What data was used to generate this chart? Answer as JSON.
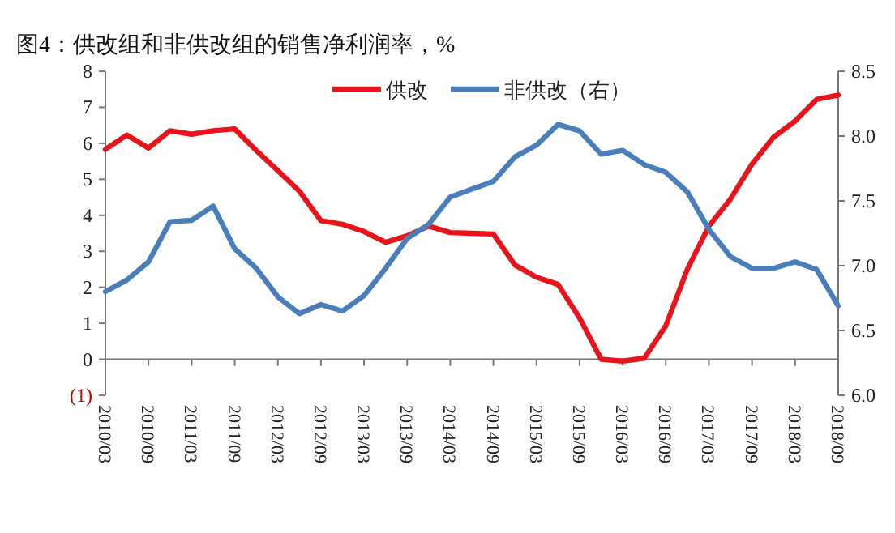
{
  "chart_data": {
    "type": "line",
    "title": "图4：供改组和非供改组的销售净利润率，%",
    "categories": [
      "2010/03",
      null,
      "2010/09",
      null,
      "2011/03",
      null,
      "2011/09",
      null,
      "2012/03",
      null,
      "2012/09",
      null,
      "2013/03",
      null,
      "2013/09",
      null,
      "2014/03",
      null,
      "2014/09",
      null,
      "2015/03",
      null,
      "2015/09",
      null,
      "2016/03",
      null,
      "2016/09",
      null,
      "2017/03",
      null,
      "2017/09",
      null,
      "2018/03",
      null,
      "2018/09"
    ],
    "series": [
      {
        "name": "供改",
        "color": "#e8141b",
        "values": [
          5.83,
          6.23,
          5.87,
          6.35,
          6.25,
          6.35,
          6.4,
          5.8,
          5.24,
          4.67,
          3.85,
          3.75,
          3.55,
          3.25,
          3.43,
          3.7,
          3.52,
          3.5,
          3.48,
          2.62,
          2.28,
          2.08,
          1.15,
          0.0,
          -0.05,
          0.03,
          0.93,
          2.5,
          3.7,
          4.45,
          5.42,
          6.17,
          6.62,
          7.22,
          7.34
        ]
      },
      {
        "name": "非供改（右）",
        "color": "#4a7ebb",
        "axis": "y2",
        "values": [
          6.8,
          6.89,
          7.03,
          7.34,
          7.35,
          7.46,
          7.13,
          6.98,
          6.76,
          6.63,
          6.7,
          6.65,
          6.77,
          6.98,
          7.21,
          7.32,
          7.53,
          7.59,
          7.65,
          7.84,
          7.93,
          8.09,
          8.04,
          7.86,
          7.89,
          7.78,
          7.72,
          7.57,
          7.28,
          7.07,
          6.98,
          6.98,
          7.03,
          6.97,
          6.69
        ]
      }
    ],
    "ylim": [
      -1,
      8
    ],
    "yticks": [
      {
        "value": -1,
        "label": "(1)"
      },
      0,
      1,
      2,
      3,
      4,
      5,
      6,
      7,
      8
    ],
    "y2lim": [
      6,
      8.5
    ],
    "y2ticks": [
      {
        "value": 6,
        "label": "6.0"
      },
      6.5,
      {
        "value": 7,
        "label": "7.0"
      },
      7.5,
      {
        "value": 8,
        "label": "8.0"
      },
      8.5
    ],
    "legend": "top",
    "grid": false,
    "marker": "none",
    "line_style": "solid"
  }
}
